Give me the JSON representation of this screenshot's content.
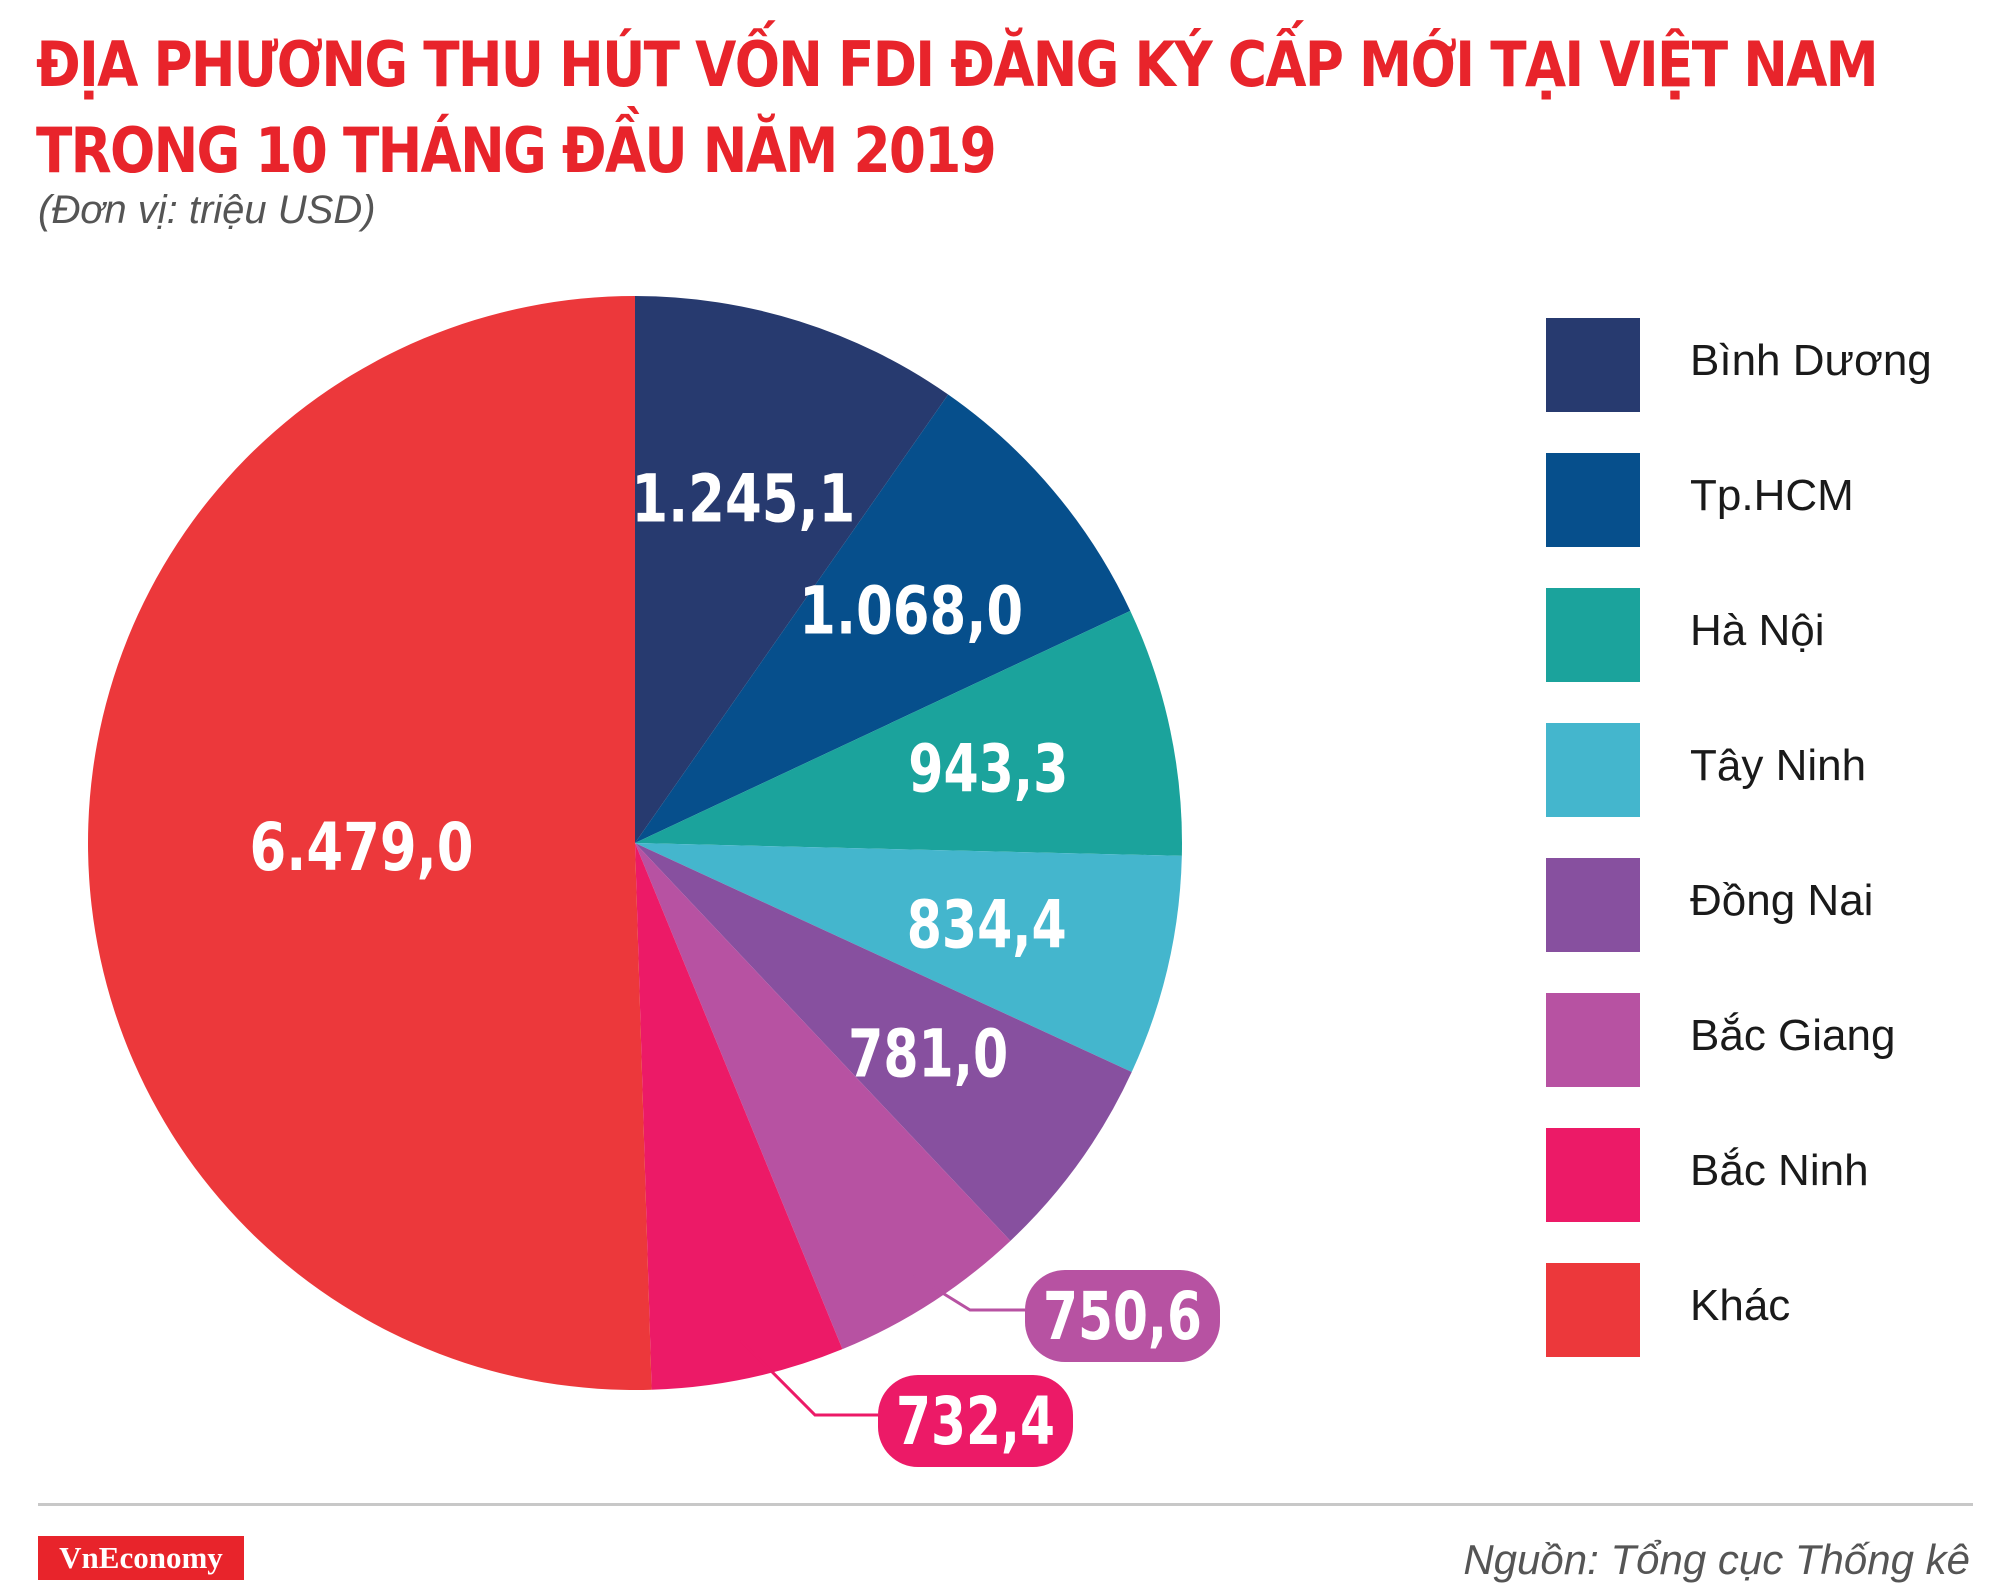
{
  "title_line1": "ĐỊA PHƯƠNG THU HÚT VỐN FDI ĐĂNG KÝ CẤP MỚI TẠI VIỆT NAM",
  "title_line2": "TRONG 10 THÁNG ĐẦU NĂM 2019",
  "subtitle": "(Đơn vị: triệu USD)",
  "source": "Nguồn: Tổng cục Thống kê",
  "brand": "VnEconomy",
  "chart_data": {
    "type": "pie",
    "title": "ĐỊA PHƯƠNG THU HÚT VỐN FDI ĐĂNG KÝ CẤP MỚI TẠI VIỆT NAM TRONG 10 THÁNG ĐẦU NĂM 2019",
    "unit": "(Đơn vị: triệu USD)",
    "legend_position": "right",
    "start_angle": "12 o'clock, clockwise",
    "slices": [
      {
        "name": "Bình Dương",
        "value": 1245.1,
        "label": "1.245,1",
        "color": "#273a6f",
        "label_style": "inside"
      },
      {
        "name": "Tp.HCM",
        "value": 1068.0,
        "label": "1.068,0",
        "color": "#064f8c",
        "label_style": "inside"
      },
      {
        "name": "Hà Nội",
        "value": 943.3,
        "label": "943,3",
        "color": "#1ba39c",
        "label_style": "inside"
      },
      {
        "name": "Tây Ninh",
        "value": 834.4,
        "label": "834,4",
        "color": "#44b6cd",
        "label_style": "inside"
      },
      {
        "name": "Đồng Nai",
        "value": 781.0,
        "label": "781,0",
        "color": "#87509f",
        "label_style": "inside"
      },
      {
        "name": "Bắc Giang",
        "value": 750.6,
        "label": "750,6",
        "color": "#b752a2",
        "label_style": "callout"
      },
      {
        "name": "Bắc Ninh",
        "value": 732.4,
        "label": "732,4",
        "color": "#ec1a67",
        "label_style": "callout"
      },
      {
        "name": "Khác",
        "value": 6479.0,
        "label": "6.479,0",
        "color": "#ec383b",
        "label_style": "inside"
      }
    ]
  }
}
